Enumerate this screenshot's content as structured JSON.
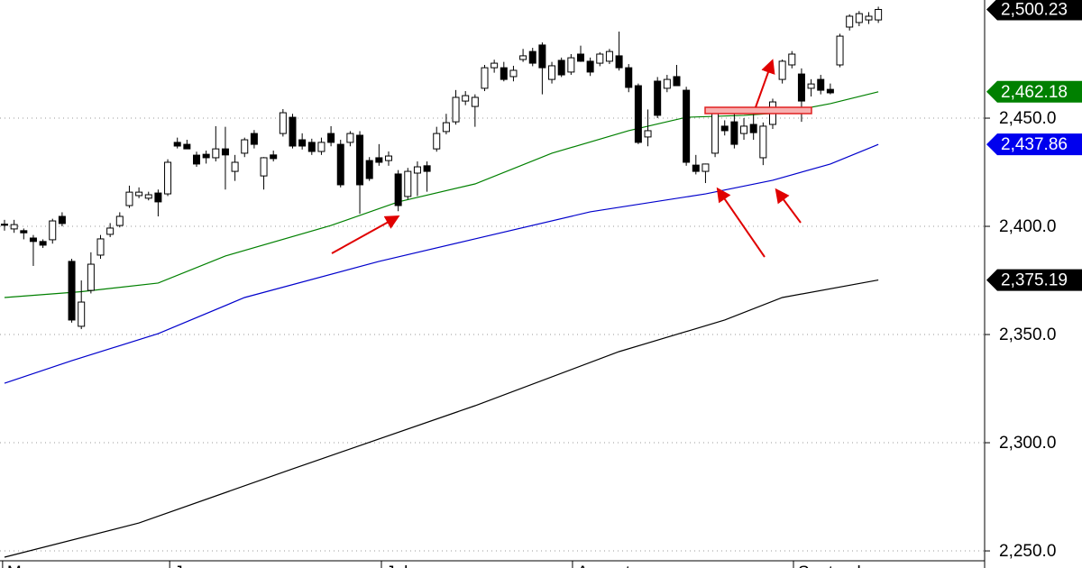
{
  "chart_data": {
    "type": "candlestick",
    "xlim": [
      -0.47,
      101.88
    ],
    "ylim": [
      2242.1,
      2504.6
    ],
    "yticks": [
      {
        "value": 2250,
        "label": "2,250.0"
      },
      {
        "value": 2300,
        "label": "2,300.0"
      },
      {
        "value": 2350,
        "label": "2,350.0"
      },
      {
        "value": 2400,
        "label": "2,400.0"
      },
      {
        "value": 2450,
        "label": "2,450.0"
      }
    ],
    "xticks": [
      {
        "value": -0.2,
        "label": "May"
      },
      {
        "value": 17.2,
        "label": "June"
      },
      {
        "value": 39.25,
        "label": "July"
      },
      {
        "value": 59.15,
        "label": "August"
      },
      {
        "value": 82.16,
        "label": "September"
      }
    ],
    "grid": true,
    "up_color": "#ffffff",
    "down_color": "#000000",
    "ohlc": [
      [
        2401,
        2403,
        2398,
        2400.5
      ],
      [
        2398.8,
        2403,
        2397,
        2400.8
      ],
      [
        2398,
        2399,
        2394,
        2397
      ],
      [
        2394.6,
        2396,
        2381.7,
        2393
      ],
      [
        2393,
        2394,
        2390,
        2391.3
      ],
      [
        2393.8,
        2403.5,
        2392,
        2402.5
      ],
      [
        2404.6,
        2406.5,
        2400,
        2401.3
      ],
      [
        2383.8,
        2385,
        2355.5,
        2356.7
      ],
      [
        2353.8,
        2375,
        2352.5,
        2365
      ],
      [
        2370.4,
        2388,
        2369,
        2382.5
      ],
      [
        2386.7,
        2396,
        2385,
        2394.2
      ],
      [
        2396.3,
        2401.5,
        2395,
        2399.2
      ],
      [
        2400.4,
        2406.5,
        2399.5,
        2404.6
      ],
      [
        2409.6,
        2418.8,
        2408.5,
        2415.8
      ],
      [
        2414.2,
        2418,
        2413,
        2415.8
      ],
      [
        2413,
        2416,
        2412,
        2414.6
      ],
      [
        2415.4,
        2417,
        2404.6,
        2411.3
      ],
      [
        2415,
        2431,
        2414,
        2429.6
      ],
      [
        2438.8,
        2441,
        2436,
        2437.1
      ],
      [
        2437.9,
        2440,
        2436,
        2435.8
      ],
      [
        2432.9,
        2434.5,
        2427.5,
        2428.8
      ],
      [
        2433.3,
        2435,
        2429,
        2431.7
      ],
      [
        2431.7,
        2446.3,
        2430,
        2435.8
      ],
      [
        2435.8,
        2446,
        2417,
        2433
      ],
      [
        2425.4,
        2433,
        2421,
        2429.6
      ],
      [
        2433.8,
        2441,
        2432,
        2440
      ],
      [
        2442.9,
        2444.5,
        2436,
        2437.9
      ],
      [
        2423.3,
        2432,
        2417,
        2431.7
      ],
      [
        2433,
        2435,
        2430,
        2431.3
      ],
      [
        2442.9,
        2454.2,
        2441.5,
        2452.5
      ],
      [
        2450.4,
        2452,
        2436,
        2437.1
      ],
      [
        2440,
        2443,
        2435.5,
        2437.1
      ],
      [
        2438.8,
        2440.5,
        2433,
        2434.6
      ],
      [
        2434.6,
        2441,
        2433,
        2438.8
      ],
      [
        2442.9,
        2446.3,
        2437,
        2438.8
      ],
      [
        2437.9,
        2440,
        2418,
        2419.2
      ],
      [
        2438.8,
        2444,
        2437,
        2442.9
      ],
      [
        2442.1,
        2444,
        2405.8,
        2419.2
      ],
      [
        2430.4,
        2432,
        2421,
        2422.1
      ],
      [
        2431.7,
        2438,
        2428,
        2429.6
      ],
      [
        2430.4,
        2434.6,
        2428,
        2432.5
      ],
      [
        2424.2,
        2426,
        2407,
        2409.6
      ],
      [
        2413.8,
        2427,
        2412.5,
        2425.4
      ],
      [
        2424.6,
        2430,
        2414,
        2427.5
      ],
      [
        2428,
        2430,
        2416,
        2425.4
      ],
      [
        2435.8,
        2446,
        2434.5,
        2442.9
      ],
      [
        2443.8,
        2452,
        2442.5,
        2447.9
      ],
      [
        2448.3,
        2463,
        2447,
        2459.6
      ],
      [
        2457.9,
        2462.5,
        2456,
        2460.4
      ],
      [
        2455.4,
        2461,
        2446,
        2459.6
      ],
      [
        2463.8,
        2474.6,
        2462.5,
        2473.3
      ],
      [
        2473.3,
        2477,
        2471,
        2475.4
      ],
      [
        2473.3,
        2476,
        2467,
        2467.9
      ],
      [
        2469.2,
        2474.2,
        2467,
        2472.1
      ],
      [
        2477.1,
        2482,
        2476,
        2478.8
      ],
      [
        2480.8,
        2482.5,
        2474,
        2475.4
      ],
      [
        2483.8,
        2485,
        2461,
        2473.3
      ],
      [
        2467.9,
        2476,
        2466,
        2474.2
      ],
      [
        2476.7,
        2478,
        2469,
        2470
      ],
      [
        2471.3,
        2479.6,
        2470,
        2477.9
      ],
      [
        2479.6,
        2483.5,
        2476,
        2476.3
      ],
      [
        2476.3,
        2478,
        2469.5,
        2471.3
      ],
      [
        2475.4,
        2480.5,
        2474,
        2479.6
      ],
      [
        2476.3,
        2482,
        2475,
        2480.8
      ],
      [
        2478.8,
        2490,
        2472,
        2473.3
      ],
      [
        2473.3,
        2475,
        2462,
        2464.2
      ],
      [
        2465,
        2466,
        2438,
        2438.8
      ],
      [
        2441.3,
        2454,
        2437,
        2444.2
      ],
      [
        2467.1,
        2469,
        2450,
        2451.3
      ],
      [
        2463.8,
        2470,
        2462,
        2467.9
      ],
      [
        2469.2,
        2474.6,
        2466,
        2465
      ],
      [
        2462.9,
        2464.5,
        2428,
        2429.6
      ],
      [
        2428.3,
        2433,
        2424,
        2425.4
      ],
      [
        2425.4,
        2429,
        2420,
        2428.8
      ],
      [
        2433.8,
        2455,
        2432,
        2452.5
      ],
      [
        2446.3,
        2449,
        2442,
        2444.2
      ],
      [
        2448.3,
        2452,
        2436,
        2437.9
      ],
      [
        2442.9,
        2450,
        2440,
        2446.3
      ],
      [
        2447.1,
        2452,
        2440,
        2443.3
      ],
      [
        2431.7,
        2448,
        2428.3,
        2446.3
      ],
      [
        2447.1,
        2459,
        2445,
        2457.5
      ],
      [
        2467.9,
        2477.1,
        2466,
        2476.3
      ],
      [
        2474.6,
        2481,
        2473,
        2479.6
      ],
      [
        2470.4,
        2473,
        2448.3,
        2457.9
      ],
      [
        2463.8,
        2468,
        2460,
        2465.8
      ],
      [
        2467.9,
        2470,
        2461,
        2462.9
      ],
      [
        2463.3,
        2466,
        2461,
        2461.7
      ],
      [
        2474.6,
        2489,
        2473.5,
        2487.9
      ],
      [
        2492.1,
        2498,
        2490.5,
        2497.1
      ],
      [
        2494.2,
        2499.5,
        2492.5,
        2498.3
      ],
      [
        2495.4,
        2499,
        2493.5,
        2497.1
      ],
      [
        2495.4,
        2501.5,
        2494,
        2500.23
      ]
    ],
    "overlays": [
      {
        "color": "#008000",
        "x": [
          0,
          8,
          16,
          23,
          34,
          41,
          49,
          57,
          65,
          71,
          77,
          81,
          86,
          91
        ],
        "values": [
          2367.1,
          2369.8,
          2373.8,
          2386.3,
          2400.4,
          2411.3,
          2419.6,
          2433.8,
          2444.2,
          2450.4,
          2451.3,
          2452.5,
          2456.7,
          2462.18
        ]
      },
      {
        "color": "#0000cc",
        "x": [
          0,
          7,
          16,
          25,
          39,
          49,
          61,
          73,
          80,
          86,
          91
        ],
        "values": [
          2327.5,
          2337.9,
          2350.4,
          2367.1,
          2383.8,
          2394.2,
          2406.7,
          2415,
          2421.3,
          2428.8,
          2437.86
        ]
      },
      {
        "color": "#000000",
        "x": [
          0,
          14,
          30,
          49,
          64,
          75,
          81,
          91
        ],
        "values": [
          2247.1,
          2262.9,
          2287.9,
          2317.1,
          2342.1,
          2356.7,
          2367.1,
          2375.19
        ]
      }
    ],
    "price_tags": [
      {
        "value": 2500.23,
        "label": "2,500.23",
        "color": "#000000"
      },
      {
        "value": 2462.18,
        "label": "2,462.18",
        "color": "#008000"
      },
      {
        "value": 2437.86,
        "label": "2,437.86",
        "color": "#0000ee"
      },
      {
        "value": 2375.19,
        "label": "2,375.19",
        "color": "#000000"
      }
    ]
  }
}
